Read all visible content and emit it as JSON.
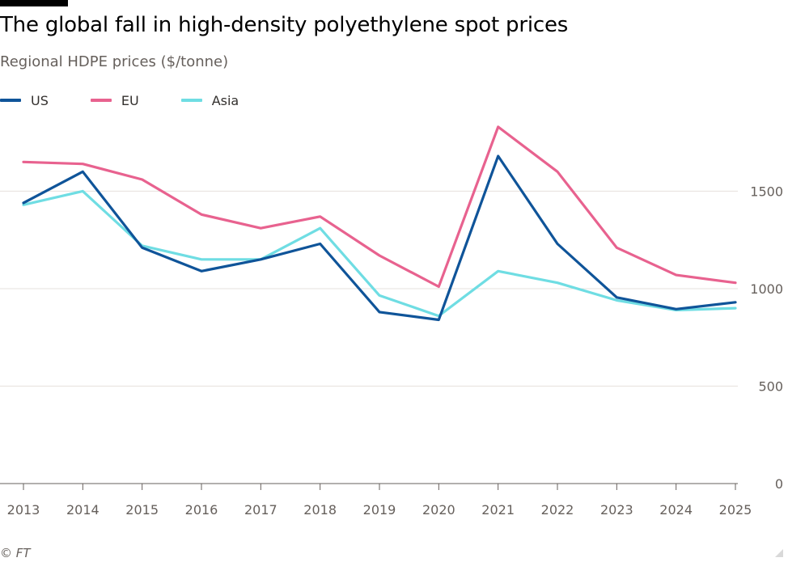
{
  "header": {
    "title": "The global fall in high-density polyethylene spot prices",
    "subtitle": "Regional HDPE prices ($/tonne)"
  },
  "legend": [
    {
      "label": "US",
      "color": "#0f5499"
    },
    {
      "label": "EU",
      "color": "#e8628f"
    },
    {
      "label": "Asia",
      "color": "#6fdde3"
    }
  ],
  "footer": {
    "source": "© FT"
  },
  "chart_data": {
    "type": "line",
    "title": "The global fall in high-density polyethylene spot prices",
    "ylabel": "Regional HDPE prices ($/tonne)",
    "xlabel": "",
    "categories": [
      "2013",
      "2014",
      "2015",
      "2016",
      "2017",
      "2018",
      "2019",
      "2020",
      "2021",
      "2022",
      "2023",
      "2024",
      "2025"
    ],
    "ylim": [
      0,
      1900
    ],
    "yticks": [
      0,
      500,
      1000,
      1500
    ],
    "grid": true,
    "series": [
      {
        "name": "US",
        "color": "#0f5499",
        "values": [
          1440,
          1600,
          1210,
          1090,
          1150,
          1230,
          880,
          840,
          1680,
          1230,
          955,
          895,
          930
        ]
      },
      {
        "name": "EU",
        "color": "#e8628f",
        "values": [
          1650,
          1640,
          1560,
          1380,
          1310,
          1370,
          1170,
          1010,
          1830,
          1600,
          1210,
          1070,
          1030
        ]
      },
      {
        "name": "Asia",
        "color": "#6fdde3",
        "values": [
          1430,
          1500,
          1220,
          1150,
          1150,
          1310,
          965,
          860,
          1090,
          1030,
          940,
          890,
          900
        ]
      }
    ]
  }
}
